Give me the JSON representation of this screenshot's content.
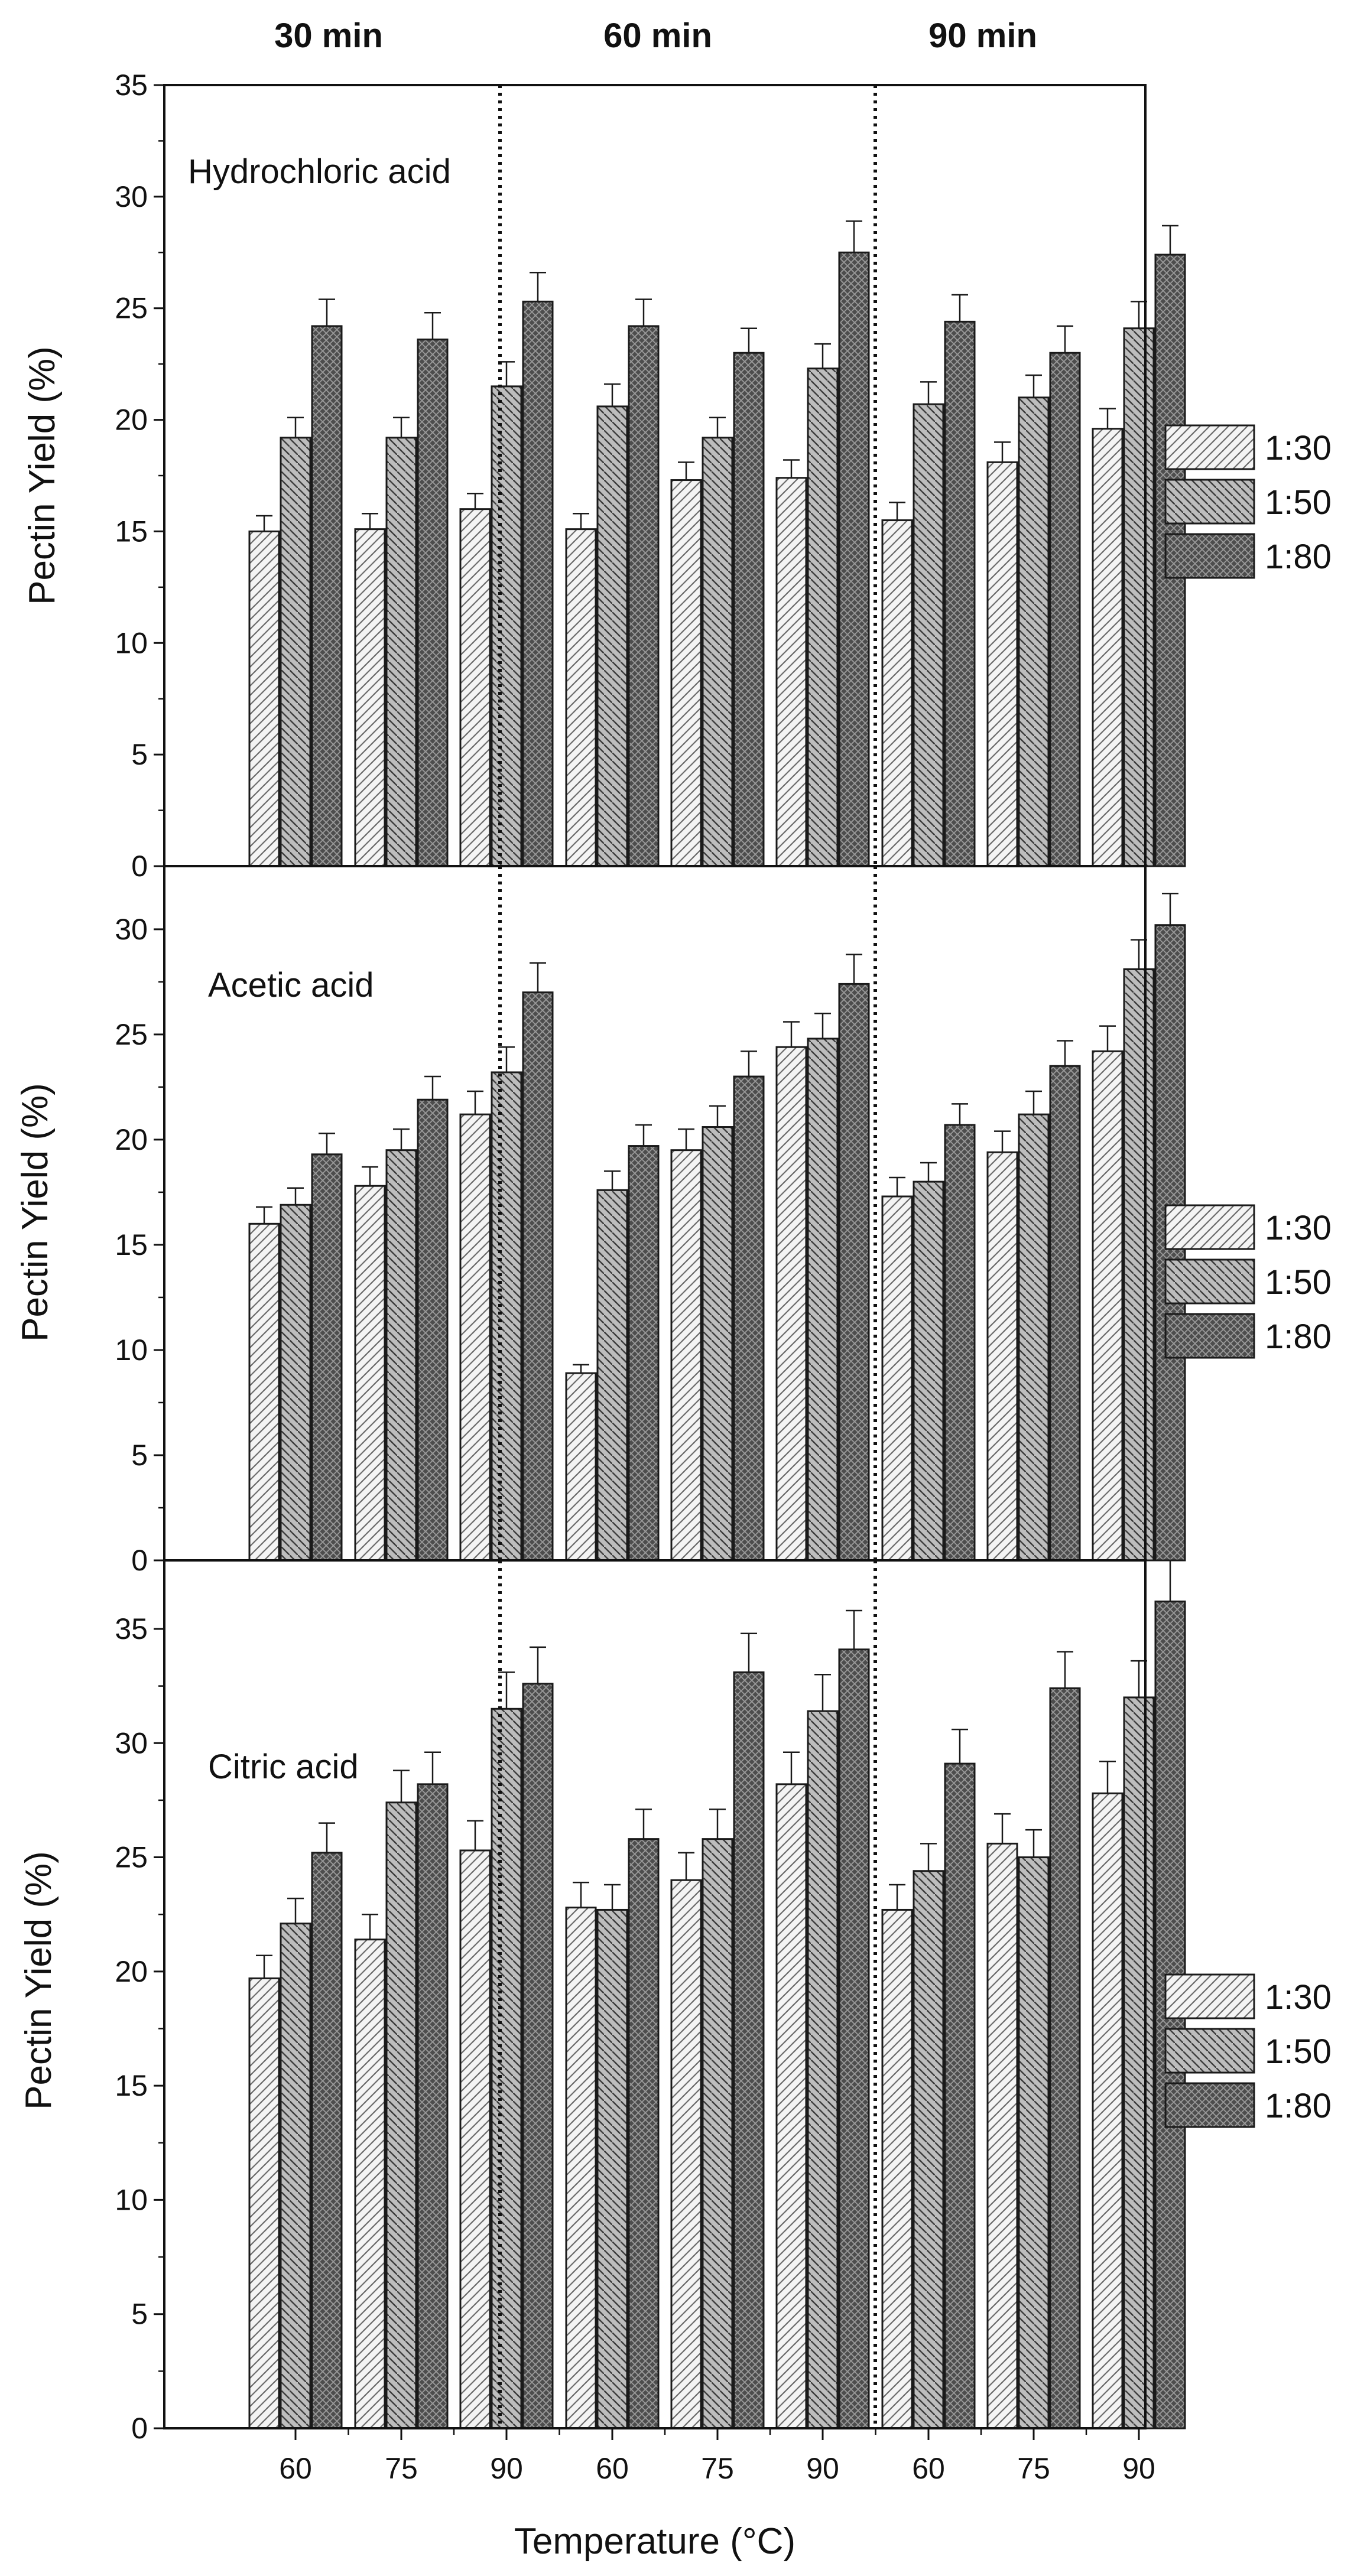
{
  "chart_data": {
    "type": "bar",
    "column_headers": [
      "30 min",
      "60 min",
      "90 min"
    ],
    "categories": [
      "60",
      "75",
      "90",
      "60",
      "75",
      "90",
      "60",
      "75",
      "90"
    ],
    "xlabel": "Temperature (°C)",
    "ylabel": "Pectin Yield (%)",
    "legend_position": "right",
    "series_names": [
      "1:30",
      "1:50",
      "1:80"
    ],
    "colors": {
      "s1_fill": "#f4f4f4",
      "s2_fill": "#bdbdbd",
      "s3_fill": "#4d4d4d",
      "stroke": "#1a1a1a",
      "separator": "#111111"
    },
    "panels": [
      {
        "label": "Hydrochloric acid",
        "ylim": [
          0,
          35
        ],
        "yticks": [
          "0",
          "5",
          "10",
          "15",
          "20",
          "25",
          "30",
          "35"
        ],
        "series": [
          {
            "name": "1:30",
            "values": [
              15.0,
              15.1,
              16.0,
              15.1,
              17.3,
              17.4,
              15.5,
              18.1,
              19.6
            ],
            "errors": [
              0.7,
              0.7,
              0.7,
              0.7,
              0.8,
              0.8,
              0.8,
              0.9,
              0.9
            ]
          },
          {
            "name": "1:50",
            "values": [
              19.2,
              19.2,
              21.5,
              20.6,
              19.2,
              22.3,
              20.7,
              21.0,
              24.1
            ],
            "errors": [
              0.9,
              0.9,
              1.1,
              1.0,
              0.9,
              1.1,
              1.0,
              1.0,
              1.2
            ]
          },
          {
            "name": "1:80",
            "values": [
              24.2,
              23.6,
              25.3,
              24.2,
              23.0,
              27.5,
              24.4,
              23.0,
              27.4
            ],
            "errors": [
              1.2,
              1.2,
              1.3,
              1.2,
              1.1,
              1.4,
              1.2,
              1.2,
              1.3
            ]
          }
        ]
      },
      {
        "label": "Acetic acid",
        "ylim": [
          0,
          33
        ],
        "yticks": [
          "0",
          "5",
          "10",
          "15",
          "20",
          "25",
          "30"
        ],
        "series": [
          {
            "name": "1:30",
            "values": [
              16.0,
              17.8,
              21.2,
              8.9,
              19.5,
              24.4,
              17.3,
              19.4,
              24.2
            ],
            "errors": [
              0.8,
              0.9,
              1.1,
              0.4,
              1.0,
              1.2,
              0.9,
              1.0,
              1.2
            ]
          },
          {
            "name": "1:50",
            "values": [
              16.9,
              19.5,
              23.2,
              17.6,
              20.6,
              24.8,
              18.0,
              21.2,
              28.1
            ],
            "errors": [
              0.8,
              1.0,
              1.2,
              0.9,
              1.0,
              1.2,
              0.9,
              1.1,
              1.4
            ]
          },
          {
            "name": "1:80",
            "values": [
              19.3,
              21.9,
              27.0,
              19.7,
              23.0,
              27.4,
              20.7,
              23.5,
              30.2
            ],
            "errors": [
              1.0,
              1.1,
              1.4,
              1.0,
              1.2,
              1.4,
              1.0,
              1.2,
              1.5
            ]
          }
        ]
      },
      {
        "label": "Citric acid",
        "ylim": [
          0,
          38
        ],
        "yticks": [
          "0",
          "5",
          "10",
          "15",
          "20",
          "25",
          "30",
          "35"
        ],
        "series": [
          {
            "name": "1:30",
            "values": [
              19.7,
              21.4,
              25.3,
              22.8,
              24.0,
              28.2,
              22.7,
              25.6,
              27.8
            ],
            "errors": [
              1.0,
              1.1,
              1.3,
              1.1,
              1.2,
              1.4,
              1.1,
              1.3,
              1.4
            ]
          },
          {
            "name": "1:50",
            "values": [
              22.1,
              27.4,
              31.5,
              22.7,
              25.8,
              31.4,
              24.4,
              25.0,
              32.0
            ],
            "errors": [
              1.1,
              1.4,
              1.6,
              1.1,
              1.3,
              1.6,
              1.2,
              1.2,
              1.6
            ]
          },
          {
            "name": "1:80",
            "values": [
              25.2,
              28.2,
              32.6,
              25.8,
              33.1,
              34.1,
              29.1,
              32.4,
              36.2
            ],
            "errors": [
              1.3,
              1.4,
              1.6,
              1.3,
              1.7,
              1.7,
              1.5,
              1.6,
              1.8
            ]
          }
        ]
      }
    ]
  }
}
